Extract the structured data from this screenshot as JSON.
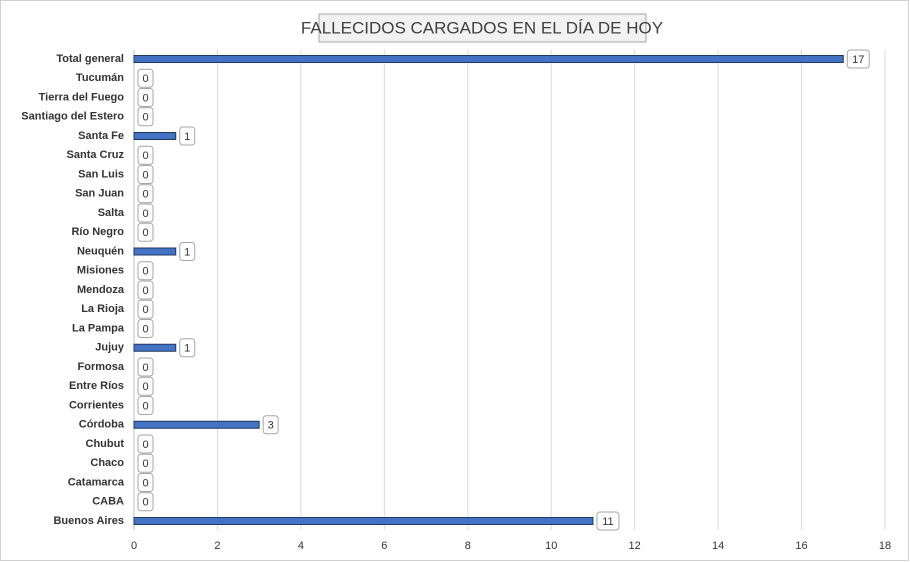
{
  "chart_data": {
    "type": "hbar",
    "title": "FALLECIDOS CARGADOS EN EL DÍA DE HOY",
    "categories": [
      "Total general",
      "Tucumán",
      "Tierra del Fuego",
      "Santiago del Estero",
      "Santa Fe",
      "Santa Cruz",
      "San Luis",
      "San Juan",
      "Salta",
      "Río Negro",
      "Neuquén",
      "Misiones",
      "Mendoza",
      "La Rioja",
      "La Pampa",
      "Jujuy",
      "Formosa",
      "Entre Ríos",
      "Corrientes",
      "Córdoba",
      "Chubut",
      "Chaco",
      "Catamarca",
      "CABA",
      "Buenos Aires"
    ],
    "values": [
      17,
      0,
      0,
      0,
      1,
      0,
      0,
      0,
      0,
      0,
      1,
      0,
      0,
      0,
      0,
      1,
      0,
      0,
      0,
      3,
      0,
      0,
      0,
      0,
      11
    ],
    "color": "#4472c4",
    "xlim": [
      0,
      18
    ],
    "xticks": [
      0,
      2,
      4,
      6,
      8,
      10,
      12,
      14,
      16,
      18
    ],
    "grid": true
  }
}
